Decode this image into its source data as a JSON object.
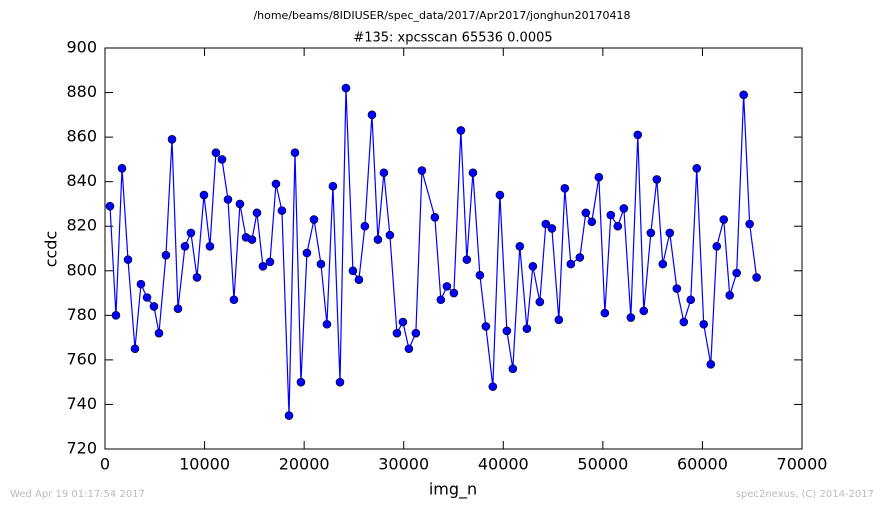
{
  "chart_data": {
    "type": "line",
    "suptitle": "/home/beams/8IDIUSER/spec_data/2017/Apr2017/jonghun20170418",
    "title": "#135: xpcsscan 65536 0.0005",
    "xlabel": "img_n",
    "ylabel": "ccdc",
    "footer_left": "Wed Apr 19 01:17:54 2017",
    "footer_right": "spec2nexus, (C) 2014-2017",
    "xlim": [
      0,
      70000
    ],
    "xticks": [
      0,
      10000,
      20000,
      30000,
      40000,
      50000,
      60000,
      70000
    ],
    "ylim": [
      720,
      900
    ],
    "yticks": [
      720,
      740,
      760,
      780,
      800,
      820,
      840,
      860,
      880,
      900
    ],
    "grid": false,
    "series": [
      {
        "color": "#0000ff",
        "x": [
          500,
          1100,
          1710,
          2310,
          3010,
          3610,
          4220,
          4920,
          5420,
          6120,
          6730,
          7330,
          8030,
          8630,
          9240,
          9940,
          10540,
          11140,
          11750,
          12350,
          12950,
          13550,
          14160,
          14760,
          15260,
          15860,
          16570,
          17170,
          17770,
          18480,
          19080,
          19680,
          20280,
          20990,
          21690,
          22290,
          22890,
          23600,
          24200,
          24900,
          25500,
          26100,
          26810,
          27410,
          28010,
          28610,
          29320,
          29920,
          30520,
          31220,
          31830,
          33130,
          33730,
          34340,
          35040,
          35740,
          36340,
          36950,
          37650,
          38250,
          38950,
          39660,
          40360,
          40960,
          41660,
          42370,
          42970,
          43670,
          44270,
          44880,
          45580,
          46180,
          46780,
          47690,
          48290,
          48890,
          49600,
          50200,
          50800,
          51500,
          52110,
          52810,
          53510,
          54110,
          54820,
          55420,
          56020,
          56720,
          57430,
          58130,
          58830,
          59430,
          60130,
          60840,
          61440,
          62140,
          62740,
          63440,
          64140,
          64740,
          65440
        ],
        "values": [
          829,
          780,
          846,
          805,
          765,
          794,
          788,
          784,
          772,
          807,
          859,
          783,
          811,
          817,
          797,
          834,
          811,
          853,
          850,
          832,
          787,
          830,
          815,
          814,
          826,
          802,
          804,
          839,
          827,
          735,
          853,
          750,
          808,
          823,
          803,
          776,
          838,
          750,
          882,
          800,
          796,
          820,
          870,
          814,
          844,
          816,
          772,
          777,
          765,
          772,
          845,
          824,
          787,
          793,
          790,
          863,
          805,
          844,
          798,
          775,
          748,
          834,
          773,
          756,
          811,
          774,
          802,
          786,
          821,
          819,
          778,
          837,
          803,
          806,
          826,
          822,
          842,
          781,
          825,
          820,
          828,
          779,
          861,
          782,
          817,
          841,
          803,
          817,
          792,
          777,
          787,
          846,
          776,
          758,
          811,
          823,
          789,
          799,
          879,
          821,
          797
        ]
      }
    ]
  }
}
